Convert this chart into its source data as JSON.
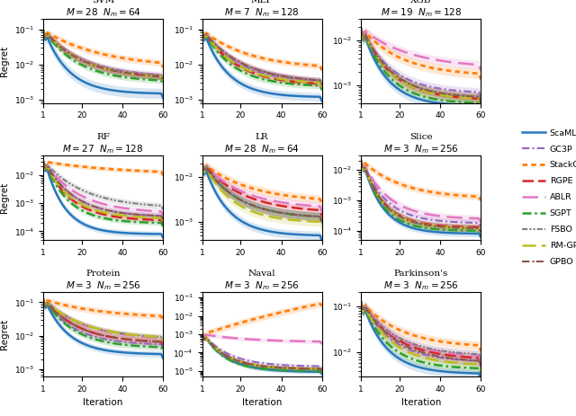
{
  "subplots": [
    {
      "title": "SVM",
      "M": 28,
      "Nm": 64,
      "ylim": [
        0.0008,
        0.2
      ]
    },
    {
      "title": "MLP",
      "M": 7,
      "Nm": 128,
      "ylim": [
        0.0008,
        0.2
      ]
    },
    {
      "title": "XGB",
      "M": 19,
      "Nm": 128,
      "ylim": [
        0.0004,
        0.03
      ]
    },
    {
      "title": "RF",
      "M": 27,
      "Nm": 128,
      "ylim": [
        5e-05,
        0.05
      ]
    },
    {
      "title": "LR",
      "M": 28,
      "Nm": 64,
      "ylim": [
        0.0004,
        0.03
      ]
    },
    {
      "title": "Slice",
      "M": 3,
      "Nm": 256,
      "ylim": [
        5e-05,
        0.03
      ]
    },
    {
      "title": "Protein",
      "M": 3,
      "Nm": 256,
      "ylim": [
        0.0006,
        0.2
      ]
    },
    {
      "title": "Naval",
      "M": 3,
      "Nm": 256,
      "ylim": [
        5e-06,
        0.2
      ]
    },
    {
      "title": "Parkinson's",
      "M": 3,
      "Nm": 256,
      "ylim": [
        0.003,
        0.2
      ]
    }
  ],
  "methods": [
    {
      "name": "ScaML-GP",
      "color": "#2878bd",
      "lw": 1.8
    },
    {
      "name": "GC3P",
      "color": "#9467bd",
      "lw": 1.5
    },
    {
      "name": "StackGP",
      "color": "#ff7f0e",
      "lw": 2.0
    },
    {
      "name": "RGPE",
      "color": "#d62728",
      "lw": 1.8
    },
    {
      "name": "ABLR",
      "color": "#e377c2",
      "lw": 1.8
    },
    {
      "name": "SGPT",
      "color": "#2ca02c",
      "lw": 1.8
    },
    {
      "name": "FSBO",
      "color": "#7f7f7f",
      "lw": 1.5
    },
    {
      "name": "RM-GP-UCB",
      "color": "#bcbd22",
      "lw": 1.8
    },
    {
      "name": "GPBO",
      "color": "#8c564b",
      "lw": 1.5
    }
  ],
  "subplot_data": {
    "SVM": {
      "starts": [
        0.09,
        0.09,
        0.09,
        0.09,
        0.09,
        0.09,
        0.09,
        0.09,
        0.09
      ],
      "ends": [
        0.0015,
        0.005,
        0.011,
        0.0045,
        0.0045,
        0.0035,
        0.0045,
        0.0045,
        0.0045
      ],
      "stds": [
        0.0004,
        0.0008,
        0.0018,
        0.0007,
        0.0007,
        0.0005,
        0.0007,
        0.0007,
        0.0007
      ],
      "decay": [
        5.0,
        3.0,
        2.0,
        3.0,
        3.0,
        3.5,
        3.0,
        3.0,
        3.0
      ]
    },
    "MLP": {
      "starts": [
        0.09,
        0.09,
        0.09,
        0.09,
        0.09,
        0.09,
        0.09,
        0.09,
        0.09
      ],
      "ends": [
        0.0012,
        0.0035,
        0.009,
        0.0028,
        0.0035,
        0.0025,
        0.0035,
        0.003,
        0.0035
      ],
      "stds": [
        0.00025,
        0.0005,
        0.0013,
        0.0004,
        0.0005,
        0.0004,
        0.0005,
        0.0004,
        0.0005
      ],
      "decay": [
        5.0,
        3.5,
        2.5,
        3.5,
        3.0,
        4.0,
        3.0,
        3.5,
        3.0
      ]
    },
    "XGB": {
      "starts": [
        0.018,
        0.018,
        0.018,
        0.018,
        0.018,
        0.018,
        0.018,
        0.018,
        0.018
      ],
      "ends": [
        0.00035,
        0.0007,
        0.0018,
        0.0005,
        0.0028,
        0.0004,
        0.00055,
        0.0005,
        0.00055
      ],
      "stds": [
        7e-05,
        0.00012,
        0.00035,
        9e-05,
        0.00045,
        7e-05,
        9e-05,
        9e-05,
        9e-05
      ],
      "decay": [
        5.0,
        4.0,
        3.0,
        4.0,
        2.5,
        4.5,
        4.0,
        4.0,
        4.0
      ]
    },
    "RF": {
      "starts": [
        0.03,
        0.03,
        0.03,
        0.03,
        0.03,
        0.03,
        0.03,
        0.03,
        0.03
      ],
      "ends": [
        8e-05,
        0.00035,
        0.013,
        0.00025,
        0.0005,
        0.0002,
        0.0008,
        0.0003,
        0.00035
      ],
      "stds": [
        1.5e-05,
        7e-05,
        0.0018,
        4e-05,
        8e-05,
        3e-05,
        0.00015,
        5e-05,
        6e-05
      ],
      "decay": [
        6.0,
        4.0,
        1.5,
        4.5,
        3.5,
        5.0,
        3.0,
        4.5,
        4.0
      ]
    },
    "LR": {
      "starts": [
        0.02,
        0.02,
        0.02,
        0.02,
        0.02,
        0.02,
        0.02,
        0.02,
        0.02
      ],
      "ends": [
        0.0005,
        0.0013,
        0.0032,
        0.0018,
        0.0022,
        0.0013,
        0.0013,
        0.001,
        0.0013
      ],
      "stds": [
        8e-05,
        0.00025,
        0.0005,
        0.00025,
        0.00035,
        0.0002,
        0.0002,
        0.00018,
        0.0002
      ],
      "decay": [
        5.0,
        3.5,
        2.5,
        3.0,
        3.0,
        3.5,
        3.5,
        4.0,
        3.5
      ]
    },
    "Slice": {
      "starts": [
        0.02,
        0.02,
        0.02,
        0.02,
        0.02,
        0.02,
        0.02,
        0.02,
        0.02
      ],
      "ends": [
        8e-05,
        0.00018,
        0.0013,
        0.00013,
        0.00025,
        0.0001,
        0.00012,
        0.00012,
        0.00012
      ],
      "stds": [
        1.5e-05,
        3.5e-05,
        0.00025,
        2.5e-05,
        5e-05,
        1.5e-05,
        2.5e-05,
        2.5e-05,
        2.5e-05
      ],
      "decay": [
        6.0,
        5.0,
        3.0,
        5.5,
        4.5,
        6.0,
        5.5,
        5.5,
        5.5
      ]
    },
    "Protein": {
      "starts": [
        0.12,
        0.12,
        0.12,
        0.12,
        0.12,
        0.12,
        0.12,
        0.12,
        0.12
      ],
      "ends": [
        0.0028,
        0.0055,
        0.038,
        0.0065,
        0.0085,
        0.0045,
        0.009,
        0.009,
        0.0065
      ],
      "stds": [
        0.00045,
        0.0009,
        0.0065,
        0.0011,
        0.0013,
        0.0007,
        0.0013,
        0.0013,
        0.0011
      ],
      "decay": [
        5.0,
        4.0,
        2.0,
        3.5,
        3.0,
        4.0,
        3.0,
        3.0,
        3.5
      ]
    },
    "Naval": {
      "starts": [
        0.001,
        0.001,
        0.001,
        0.001,
        0.001,
        0.001,
        0.001,
        0.001,
        0.001
      ],
      "ends": [
        9e-06,
        1.8e-05,
        0.05,
        1.3e-05,
        0.0004,
        1e-05,
        1.3e-05,
        1.3e-05,
        1.3e-05
      ],
      "stds": [
        1.8e-06,
        3.5e-06,
        0.018,
        2.5e-06,
        8e-05,
        1.8e-06,
        2.5e-06,
        2.5e-06,
        2.5e-06
      ],
      "decay": [
        5.0,
        4.5,
        0.5,
        5.0,
        2.5,
        5.5,
        5.0,
        5.0,
        5.0
      ]
    },
    "Parkinson's": {
      "starts": [
        0.12,
        0.12,
        0.12,
        0.12,
        0.12,
        0.12,
        0.12,
        0.12,
        0.12
      ],
      "ends": [
        0.0035,
        0.0065,
        0.014,
        0.0075,
        0.0085,
        0.0045,
        0.009,
        0.0055,
        0.0065
      ],
      "stds": [
        0.0006,
        0.0011,
        0.0022,
        0.0012,
        0.0014,
        0.0007,
        0.0014,
        0.0009,
        0.0011
      ],
      "decay": [
        5.0,
        4.0,
        3.0,
        3.5,
        3.5,
        4.5,
        3.5,
        4.0,
        3.5
      ]
    }
  },
  "n_iter": 60,
  "xlabel": "Iteration",
  "ylabel": "Regret",
  "figsize": [
    6.4,
    4.63
  ],
  "dpi": 100
}
